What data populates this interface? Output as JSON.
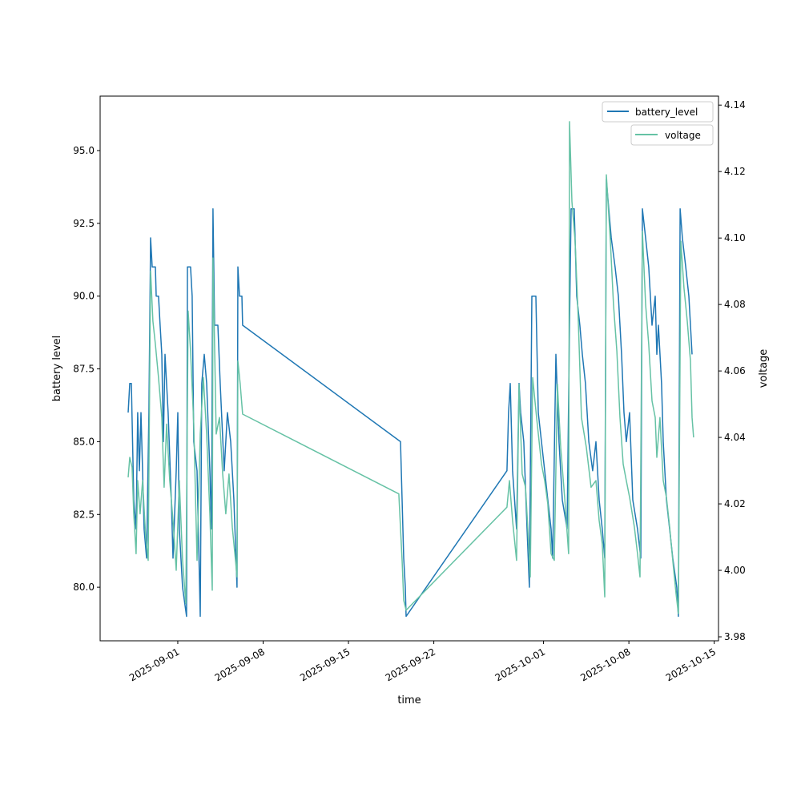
{
  "chart_data": {
    "type": "line",
    "title": "",
    "xlabel": "time",
    "ylabel": "battery level",
    "ylabel_right": "voltage",
    "x_unit": "days since 2025-09-01",
    "xlim": [
      -6.37,
      44.35
    ],
    "ylim": [
      78.16,
      96.87
    ],
    "ylim_right": [
      3.9788,
      4.1427
    ],
    "x_ticks": [
      {
        "x": 0,
        "label": "2025-09-01"
      },
      {
        "x": 7,
        "label": "2025-09-08"
      },
      {
        "x": 14,
        "label": "2025-09-15"
      },
      {
        "x": 21,
        "label": "2025-09-22"
      },
      {
        "x": 30,
        "label": "2025-10-01"
      },
      {
        "x": 37,
        "label": "2025-10-08"
      },
      {
        "x": 44,
        "label": "2025-10-15"
      }
    ],
    "y_ticks": [
      "80.0",
      "82.5",
      "85.0",
      "87.5",
      "90.0",
      "92.5",
      "95.0"
    ],
    "y_ticks_right": [
      "3.98",
      "4.00",
      "4.02",
      "4.04",
      "4.06",
      "4.08",
      "4.10",
      "4.12",
      "4.14"
    ],
    "grid": false,
    "legend_placement": "top-right",
    "colors": {
      "battery_level": "#1f77b4",
      "voltage": "#66c2a5"
    },
    "series": [
      {
        "name": "battery_level",
        "axis": "left",
        "points": [
          [
            -4.07,
            86
          ],
          [
            -3.94,
            87
          ],
          [
            -3.81,
            87
          ],
          [
            -3.61,
            83
          ],
          [
            -3.42,
            82
          ],
          [
            -3.29,
            86
          ],
          [
            -3.15,
            84
          ],
          [
            -3.02,
            86
          ],
          [
            -2.89,
            84
          ],
          [
            -2.76,
            82
          ],
          [
            -2.56,
            81
          ],
          [
            -2.37,
            86
          ],
          [
            -2.23,
            92
          ],
          [
            -2.1,
            91
          ],
          [
            -1.84,
            91
          ],
          [
            -1.77,
            90
          ],
          [
            -1.58,
            90
          ],
          [
            -1.45,
            89
          ],
          [
            -1.31,
            88
          ],
          [
            -1.18,
            85
          ],
          [
            -1.05,
            88
          ],
          [
            -0.79,
            86
          ],
          [
            -0.53,
            83
          ],
          [
            -0.39,
            81
          ],
          [
            -0.13,
            84
          ],
          [
            0,
            86
          ],
          [
            0.13,
            82
          ],
          [
            0.39,
            80
          ],
          [
            0.72,
            79
          ],
          [
            0.79,
            91
          ],
          [
            1.05,
            91
          ],
          [
            1.18,
            90
          ],
          [
            1.31,
            85
          ],
          [
            1.58,
            84
          ],
          [
            1.84,
            79
          ],
          [
            1.97,
            87
          ],
          [
            2.17,
            88
          ],
          [
            2.37,
            87
          ],
          [
            2.63,
            84
          ],
          [
            2.76,
            82
          ],
          [
            2.89,
            93
          ],
          [
            3.02,
            89
          ],
          [
            3.29,
            89
          ],
          [
            3.48,
            87
          ],
          [
            3.81,
            84
          ],
          [
            4.07,
            86
          ],
          [
            4.34,
            85
          ],
          [
            4.6,
            83
          ],
          [
            4.86,
            80
          ],
          [
            4.93,
            91
          ],
          [
            5.06,
            90
          ],
          [
            5.26,
            90
          ],
          [
            5.32,
            89
          ],
          [
            18.27,
            85
          ],
          [
            18.4,
            83
          ],
          [
            18.53,
            81
          ],
          [
            18.66,
            80
          ],
          [
            18.73,
            79
          ],
          [
            27.0,
            84
          ],
          [
            27.13,
            86
          ],
          [
            27.27,
            87
          ],
          [
            27.46,
            84
          ],
          [
            27.79,
            82
          ],
          [
            27.99,
            87
          ],
          [
            28.12,
            86
          ],
          [
            28.38,
            85
          ],
          [
            28.65,
            82
          ],
          [
            28.84,
            80
          ],
          [
            29.04,
            90
          ],
          [
            29.37,
            90
          ],
          [
            29.57,
            86
          ],
          [
            29.83,
            85
          ],
          [
            30.09,
            84
          ],
          [
            30.35,
            83
          ],
          [
            30.62,
            82
          ],
          [
            30.75,
            81
          ],
          [
            31.01,
            88
          ],
          [
            31.27,
            85
          ],
          [
            31.54,
            83
          ],
          [
            31.93,
            82
          ],
          [
            32.13,
            89
          ],
          [
            32.26,
            93
          ],
          [
            32.52,
            93
          ],
          [
            32.72,
            90
          ],
          [
            32.98,
            89
          ],
          [
            33.18,
            88
          ],
          [
            33.44,
            87
          ],
          [
            33.71,
            85
          ],
          [
            34.03,
            84
          ],
          [
            34.3,
            85
          ],
          [
            34.56,
            83
          ],
          [
            34.82,
            82
          ],
          [
            35.02,
            81
          ],
          [
            35.15,
            94
          ],
          [
            35.35,
            93
          ],
          [
            35.55,
            92
          ],
          [
            35.87,
            91
          ],
          [
            36.14,
            90
          ],
          [
            36.4,
            88
          ],
          [
            36.6,
            86
          ],
          [
            36.79,
            85
          ],
          [
            37.06,
            86
          ],
          [
            37.32,
            83
          ],
          [
            37.71,
            82
          ],
          [
            37.98,
            81
          ],
          [
            38.11,
            93
          ],
          [
            38.37,
            92
          ],
          [
            38.63,
            91
          ],
          [
            38.9,
            89
          ],
          [
            39.16,
            90
          ],
          [
            39.29,
            88
          ],
          [
            39.42,
            89
          ],
          [
            39.68,
            87
          ],
          [
            39.82,
            85
          ],
          [
            40.08,
            83
          ],
          [
            40.34,
            82
          ],
          [
            40.6,
            81
          ],
          [
            40.93,
            80
          ],
          [
            41.06,
            79
          ],
          [
            41.2,
            93
          ],
          [
            41.39,
            92
          ],
          [
            41.66,
            91
          ],
          [
            41.92,
            90
          ],
          [
            42.05,
            89
          ],
          [
            42.18,
            88
          ]
        ]
      },
      {
        "name": "voltage",
        "axis": "right",
        "points": [
          [
            -4.07,
            4.028
          ],
          [
            -3.94,
            4.034
          ],
          [
            -3.75,
            4.031
          ],
          [
            -3.61,
            4.017
          ],
          [
            -3.42,
            4.005
          ],
          [
            -3.29,
            4.027
          ],
          [
            -3.09,
            4.017
          ],
          [
            -2.89,
            4.027
          ],
          [
            -2.63,
            4.01
          ],
          [
            -2.43,
            4.003
          ],
          [
            -2.23,
            4.09
          ],
          [
            -2.04,
            4.075
          ],
          [
            -1.84,
            4.068
          ],
          [
            -1.58,
            4.058
          ],
          [
            -1.31,
            4.046
          ],
          [
            -1.12,
            4.025
          ],
          [
            -0.92,
            4.044
          ],
          [
            -0.66,
            4.027
          ],
          [
            -0.39,
            4.015
          ],
          [
            -0.13,
            4.0
          ],
          [
            0.13,
            4.027
          ],
          [
            0.39,
            4.003
          ],
          [
            0.66,
            3.99
          ],
          [
            0.85,
            4.078
          ],
          [
            1.05,
            4.066
          ],
          [
            1.31,
            4.044
          ],
          [
            1.58,
            4.003
          ],
          [
            1.84,
            4.041
          ],
          [
            2.1,
            4.058
          ],
          [
            2.37,
            4.041
          ],
          [
            2.63,
            4.017
          ],
          [
            2.83,
            3.994
          ],
          [
            2.89,
            4.094
          ],
          [
            3.15,
            4.041
          ],
          [
            3.42,
            4.046
          ],
          [
            3.68,
            4.029
          ],
          [
            3.94,
            4.017
          ],
          [
            4.2,
            4.029
          ],
          [
            4.47,
            4.013
          ],
          [
            4.73,
            4.003
          ],
          [
            4.86,
            3.998
          ],
          [
            4.93,
            4.063
          ],
          [
            5.12,
            4.056
          ],
          [
            5.32,
            4.047
          ],
          [
            18.13,
            4.023
          ],
          [
            18.4,
            4.003
          ],
          [
            18.53,
            3.991
          ],
          [
            18.73,
            3.988
          ],
          [
            27.0,
            4.019
          ],
          [
            27.2,
            4.027
          ],
          [
            27.46,
            4.015
          ],
          [
            27.79,
            4.003
          ],
          [
            27.99,
            4.056
          ],
          [
            28.25,
            4.029
          ],
          [
            28.52,
            4.025
          ],
          [
            28.78,
            4.008
          ],
          [
            28.91,
            3.998
          ],
          [
            29.11,
            4.058
          ],
          [
            29.43,
            4.046
          ],
          [
            29.83,
            4.032
          ],
          [
            30.09,
            4.027
          ],
          [
            30.35,
            4.02
          ],
          [
            30.62,
            4.005
          ],
          [
            30.88,
            4.003
          ],
          [
            31.14,
            4.056
          ],
          [
            31.41,
            4.037
          ],
          [
            31.73,
            4.022
          ],
          [
            32.06,
            4.005
          ],
          [
            32.13,
            4.135
          ],
          [
            32.33,
            4.111
          ],
          [
            32.59,
            4.099
          ],
          [
            32.85,
            4.075
          ],
          [
            33.11,
            4.046
          ],
          [
            33.51,
            4.037
          ],
          [
            33.9,
            4.025
          ],
          [
            34.3,
            4.027
          ],
          [
            34.56,
            4.015
          ],
          [
            34.82,
            4.008
          ],
          [
            35.02,
            3.992
          ],
          [
            35.15,
            4.119
          ],
          [
            35.48,
            4.099
          ],
          [
            35.74,
            4.08
          ],
          [
            36.01,
            4.066
          ],
          [
            36.27,
            4.046
          ],
          [
            36.53,
            4.032
          ],
          [
            36.79,
            4.027
          ],
          [
            37.06,
            4.022
          ],
          [
            37.45,
            4.013
          ],
          [
            37.71,
            4.005
          ],
          [
            37.91,
            3.998
          ],
          [
            38.11,
            4.102
          ],
          [
            38.37,
            4.08
          ],
          [
            38.63,
            4.068
          ],
          [
            38.9,
            4.051
          ],
          [
            39.16,
            4.046
          ],
          [
            39.29,
            4.034
          ],
          [
            39.55,
            4.046
          ],
          [
            39.82,
            4.027
          ],
          [
            40.08,
            4.022
          ],
          [
            40.34,
            4.013
          ],
          [
            40.6,
            4.003
          ],
          [
            40.87,
            3.993
          ],
          [
            41.06,
            3.987
          ],
          [
            41.26,
            4.099
          ],
          [
            41.52,
            4.085
          ],
          [
            41.79,
            4.075
          ],
          [
            42.05,
            4.063
          ],
          [
            42.18,
            4.046
          ],
          [
            42.31,
            4.04
          ]
        ]
      }
    ],
    "legend": [
      {
        "label": "battery_level",
        "series": "battery_level"
      },
      {
        "label": "voltage",
        "series": "voltage"
      }
    ]
  }
}
